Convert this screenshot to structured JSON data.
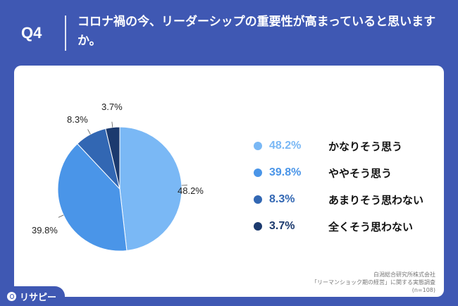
{
  "header": {
    "qnum": "Q4",
    "question": "コロナ禍の今、リーダーシップの重要性が高まっていると思いますか。"
  },
  "chart_data": {
    "type": "pie",
    "categories": [
      "かなりそう思う",
      "ややそう思う",
      "あまりそう思わない",
      "全くそう思わない"
    ],
    "values": [
      48.2,
      39.8,
      8.3,
      3.7
    ],
    "value_labels": [
      "48.2%",
      "39.8%",
      "8.3%",
      "3.7%"
    ],
    "colors": [
      "#7ab8f5",
      "#4a95e8",
      "#3267b3",
      "#1c3a6e"
    ],
    "start": "12 o'clock",
    "direction": "clockwise",
    "legend_position": "right"
  },
  "legend": [
    {
      "pct": "48.2%",
      "label": "かなりそう思う"
    },
    {
      "pct": "39.8%",
      "label": "ややそう思う"
    },
    {
      "pct": "8.3%",
      "label": "あまりそう思わない"
    },
    {
      "pct": "3.7%",
      "label": "全くそう思わない"
    }
  ],
  "source": {
    "line1": "白潟総合研究所株式会社",
    "line2": "「リーマンショック期の経営」に関する実態調査",
    "line3": "(n=108)"
  },
  "logo": {
    "text": "リサピー"
  }
}
